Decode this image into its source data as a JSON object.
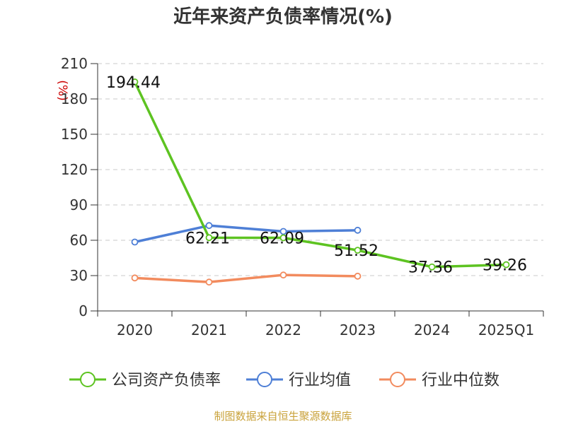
{
  "chart_data": {
    "type": "line",
    "title": "近年来资产负债率情况(%)",
    "ylabel": "(%)",
    "categories": [
      "2020",
      "2021",
      "2022",
      "2023",
      "2024",
      "2025Q1"
    ],
    "ylim": [
      0,
      210
    ],
    "yticks": [
      "0",
      "30",
      "60",
      "90",
      "120",
      "150",
      "180",
      "210"
    ],
    "grid": true,
    "legend_position": "bottom",
    "series": [
      {
        "name": "公司资产负债率",
        "color": "#5dc321",
        "values": [
          194.44,
          62.21,
          62.09,
          51.52,
          37.36,
          39.26
        ],
        "labels": [
          "194.44",
          "62.21",
          "62.09",
          "51.52",
          "37.36",
          "39.26"
        ]
      },
      {
        "name": "行业均值",
        "color": "#4e7fd6",
        "values": [
          58.5,
          72.5,
          67.5,
          68.5,
          null,
          null
        ]
      },
      {
        "name": "行业中位数",
        "color": "#f28b5e",
        "values": [
          28,
          24.5,
          30.5,
          29.5,
          null,
          null
        ]
      }
    ]
  },
  "source": "制图数据来自恒生聚源数据库"
}
